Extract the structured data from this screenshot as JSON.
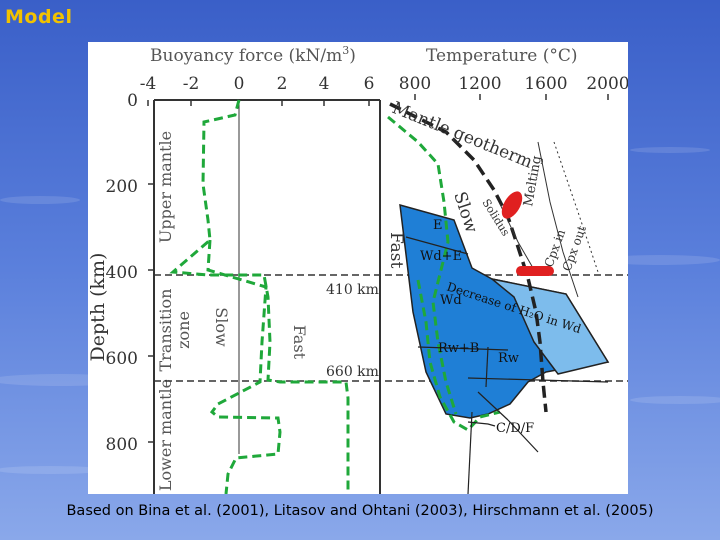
{
  "slide": {
    "title": "Model",
    "caption": "Based on Bina et al. (2001), Litasov and Ohtani (2003), Hirschmann et al. (2005)"
  },
  "left_panel": {
    "axis_title": "Buoyancy force (kN/m",
    "axis_title_sup": "3",
    "axis_title_end": ")",
    "ticks": [
      "-4",
      "-2",
      "0",
      "2",
      "4",
      "6"
    ],
    "depth_label": "Depth (km)",
    "depth_ticks": [
      "0",
      "200",
      "400",
      "600",
      "800"
    ],
    "zone_upper": "Upper mantle",
    "zone_transition_1": "Transition",
    "zone_transition_2": "zone",
    "zone_lower": "Lower mantle",
    "label_slow": "Slow",
    "label_fast": "Fast",
    "label_410": "410 km",
    "label_660": "660 km"
  },
  "right_panel": {
    "axis_title": "Temperature (°C)",
    "ticks": [
      "800",
      "1200",
      "1600",
      "2000"
    ],
    "mantle_geotherm": "Mantle geotherm",
    "slow": "Slow",
    "fast": "Fast",
    "solidus": "Solidus",
    "melting": "Melting",
    "cpx_in": "Cpx in",
    "cpx_out": "Cpx out",
    "phase_e": "E",
    "phase_wd_e": "Wd+E",
    "phase_wd": "Wd",
    "phase_rw_b": "Rw+B",
    "phase_rw": "Rw",
    "phase_cdf": "C/D/F",
    "decrease": "Decrease of H₂O in Wd"
  },
  "colors": {
    "title": "#f2c200",
    "slab_dark": "#1f7fd6",
    "slab_light": "#7dbcec",
    "green": "#1fa83a",
    "red": "#e02020"
  }
}
